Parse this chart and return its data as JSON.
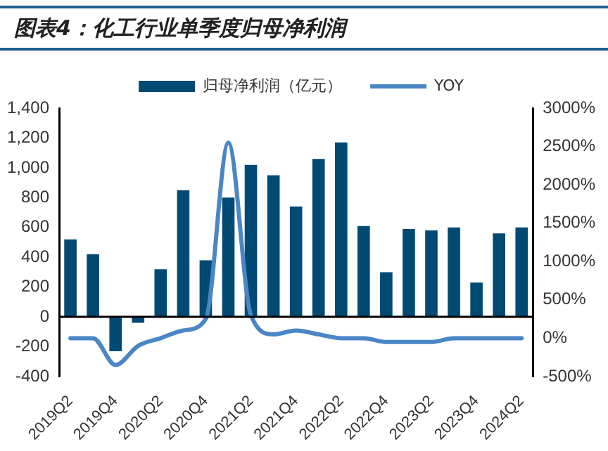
{
  "chart_data": {
    "type": "bar",
    "title": "图表4：化工行业单季度归母净利润",
    "categories": [
      "2019Q2",
      null,
      "2019Q4",
      null,
      "2020Q2",
      null,
      "2020Q4",
      null,
      "2021Q2",
      null,
      "2021Q4",
      null,
      "2022Q2",
      null,
      "2022Q4",
      null,
      "2023Q2",
      null,
      "2023Q4",
      null,
      "2024Q2"
    ],
    "series": [
      {
        "name": "归母净利润（亿元）",
        "color": "#004a74",
        "values": [
          520,
          420,
          -230,
          -40,
          320,
          850,
          380,
          800,
          1020,
          950,
          740,
          1060,
          1170,
          610,
          300,
          590,
          580,
          600,
          230,
          560,
          600
        ]
      },
      {
        "name": "YOY",
        "type": "line",
        "axis": "y2",
        "color": "#4a86c5",
        "values": [
          0,
          0,
          -350,
          -100,
          0,
          100,
          250,
          2550,
          300,
          50,
          100,
          50,
          0,
          0,
          -50,
          -50,
          -50,
          0,
          0,
          0,
          0
        ]
      }
    ],
    "ref_lines": [
      {
        "axis": "y",
        "value": 0,
        "color": "#000000"
      }
    ],
    "ylim": [
      -400,
      1400
    ],
    "yticks": [
      {
        "value": -400,
        "label": "-400"
      },
      {
        "value": -200,
        "label": "-200"
      },
      0,
      200,
      400,
      600,
      800,
      {
        "value": 1000,
        "label": "1,000"
      },
      {
        "value": 1200,
        "label": "1,200"
      },
      {
        "value": 1400,
        "label": "1,400"
      }
    ],
    "y2lim": [
      -500,
      3000
    ],
    "y2ticks": [
      {
        "value": -500,
        "label": "-500%"
      },
      {
        "value": 0,
        "label": "0%"
      },
      {
        "value": 500,
        "label": "500%"
      },
      {
        "value": 1000,
        "label": "1000%"
      },
      {
        "value": 1500,
        "label": "1500%"
      },
      {
        "value": 2000,
        "label": "2000%"
      },
      {
        "value": 2500,
        "label": "2500%"
      },
      {
        "value": 3000,
        "label": "3000%"
      }
    ],
    "grid": false,
    "legend": "top",
    "marker": "none"
  }
}
